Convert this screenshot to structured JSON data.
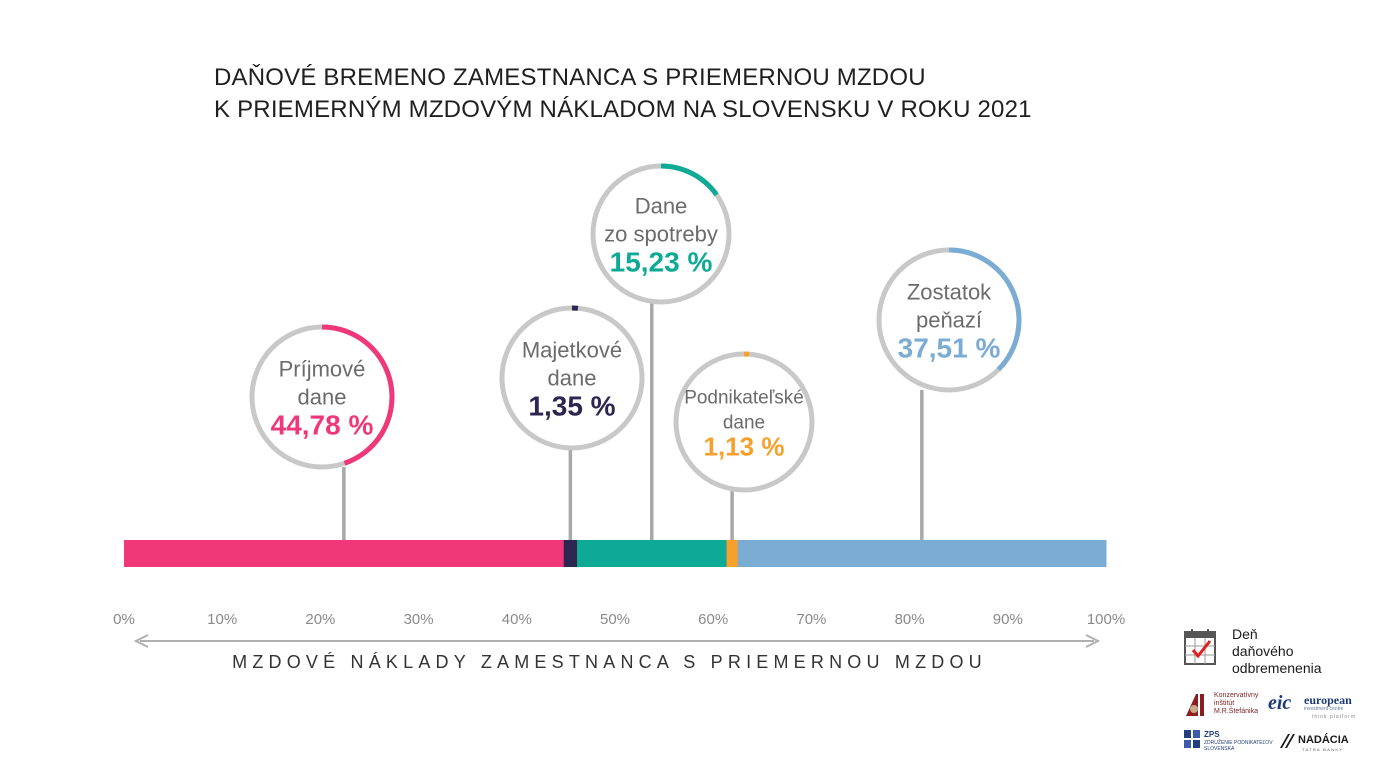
{
  "title_lines": [
    "DAŇOVÉ BREMENO ZAMESTNANCA S PRIEMERNOU MZDOU",
    "K PRIEMERNÝM MZDOVÝM NÁKLADOM NA SLOVENSKU V ROKU 2021"
  ],
  "chart_data": {
    "type": "bar",
    "orientation": "horizontal-stacked",
    "title": "DAŇOVÉ BREMENO ZAMESTNANCA S PRIEMERNOU MZDOU K PRIEMERNÝM MZDOVÝM NÁKLADOM NA SLOVENSKU V ROKU 2021",
    "xlabel": "MZDOVÉ NÁKLADY ZAMESTNANCA S PRIEMERNOU MZDOU",
    "ylabel": "",
    "xlim": [
      0,
      100
    ],
    "x_ticks": [
      "0%",
      "10%",
      "20%",
      "30%",
      "40%",
      "50%",
      "60%",
      "70%",
      "80%",
      "90%",
      "100%"
    ],
    "grid": false,
    "legend": "none",
    "series": [
      {
        "name_lines": [
          "Príjmové",
          "dane"
        ],
        "value": 44.78,
        "value_label": "44,78 %",
        "color": "#EF377A"
      },
      {
        "name_lines": [
          "Majetkové",
          "dane"
        ],
        "value": 1.35,
        "value_label": "1,35 %",
        "color": "#2E2550"
      },
      {
        "name_lines": [
          "Dane",
          "zo spotreby"
        ],
        "value": 15.23,
        "value_label": "15,23 %",
        "color": "#0EAA96"
      },
      {
        "name_lines": [
          "Podnikateľské",
          "dane"
        ],
        "value": 1.13,
        "value_label": "1,13 %",
        "color": "#F8A02C"
      },
      {
        "name_lines": [
          "Zostatok",
          "peňazí"
        ],
        "value": 37.51,
        "value_label": "37,51 %",
        "color": "#7BACD4"
      }
    ]
  },
  "logos": {
    "den_lines": [
      "Deň",
      "daňového",
      "odbremenenia"
    ],
    "ki_lines": [
      "Konzervatívny",
      "inštitút",
      "M.R.Štefánika"
    ],
    "eic_mark": "eic",
    "eic_lines": [
      "european",
      "investment centre"
    ],
    "eic_tag": "think platform",
    "zps": "ZPS",
    "zps_lines": [
      "ZDRUŽENIE PODNIKATEĽOV",
      "SLOVENSKA"
    ],
    "nadacia": "NADÁCIA",
    "nadacia_sub": "TATRA BANKY"
  }
}
